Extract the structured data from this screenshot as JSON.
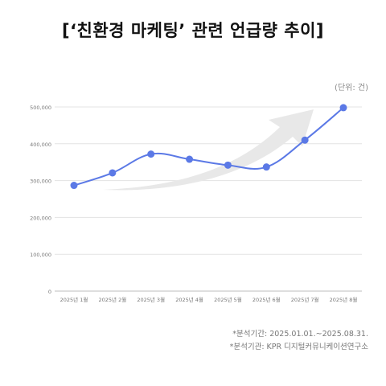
{
  "header": {
    "title": "[‘친환경 마케팅’ 관련 언급량 추이]",
    "unit": "(단위: 건)"
  },
  "footer": {
    "period": "*분석기간: 2025.01.01.~2025.08.31.",
    "source": "*분석기관: KPR 디지털커뮤니케이션연구소"
  },
  "colors": {
    "line": "#5B79E6",
    "grid": "#E3E3E3",
    "axis": "#BDBDBD",
    "arrow": "#E8E8E8",
    "tick_text": "#777777"
  },
  "chart_data": {
    "type": "line",
    "title": "[‘친환경 마케팅’ 관련 언급량 추이]",
    "categories": [
      "2025년 1월",
      "2025년 2월",
      "2025년 3월",
      "2025년 4월",
      "2025년 5월",
      "2025년 6월",
      "2025년 7월",
      "2025년 8월"
    ],
    "series": [
      {
        "values": [
          287000,
          321000,
          372000,
          358000,
          342000,
          337000,
          410000,
          498000
        ]
      }
    ],
    "yticks": [
      0,
      100000,
      200000,
      300000,
      400000,
      500000
    ],
    "ytick_labels": [
      "0",
      "100,000",
      "200,000",
      "300,000",
      "400,000",
      "500,000"
    ],
    "ylim": [
      0,
      500000
    ],
    "grid": true,
    "legend": "none",
    "annotation": "upward-trend-arrow"
  }
}
